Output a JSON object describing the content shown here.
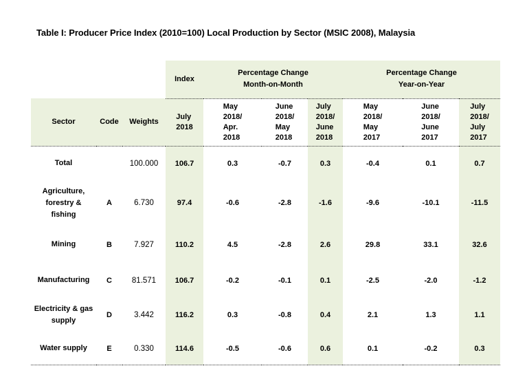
{
  "title": "Table I: Producer Price Index (2010=100) Local Production by Sector (MSIC 2008), Malaysia",
  "colors": {
    "highlight_green": "#EBF1DE",
    "text": "#000000",
    "background": "#ffffff"
  },
  "table": {
    "groups": {
      "index": "Index",
      "mom": "Percentage Change\nMonth-on-Month",
      "yoy": "Percentage Change\nYear-on-Year"
    },
    "columns": {
      "sector": "Sector",
      "code": "Code",
      "weights": "Weights",
      "index_period": "July\n2018",
      "mom1": "May\n2018/\nApr.\n2018",
      "mom2": "June\n2018/\nMay\n2018",
      "mom3": "July\n2018/\nJune\n2018",
      "yoy1": "May\n2018/\nMay\n2017",
      "yoy2": "June\n2018/\nJune\n2017",
      "yoy3": "July\n2018/\nJuly\n2017"
    },
    "rows": [
      {
        "sector": "Total",
        "code": "",
        "weights": "100.000",
        "index": "106.7",
        "mom1": "0.3",
        "mom2": "-0.7",
        "mom3": "0.3",
        "yoy1": "-0.4",
        "yoy2": "0.1",
        "yoy3": "0.7"
      },
      {
        "sector": "Agriculture,\nforestry &\nfishing",
        "code": "A",
        "weights": "6.730",
        "index": "97.4",
        "mom1": "-0.6",
        "mom2": "-2.8",
        "mom3": "-1.6",
        "yoy1": "-9.6",
        "yoy2": "-10.1",
        "yoy3": "-11.5"
      },
      {
        "sector": "Mining",
        "code": "B",
        "weights": "7.927",
        "index": "110.2",
        "mom1": "4.5",
        "mom2": "-2.8",
        "mom3": "2.6",
        "yoy1": "29.8",
        "yoy2": "33.1",
        "yoy3": "32.6"
      },
      {
        "sector": "Manufacturing",
        "code": "C",
        "weights": "81.571",
        "index": "106.7",
        "mom1": "-0.2",
        "mom2": "-0.1",
        "mom3": "0.1",
        "yoy1": "-2.5",
        "yoy2": "-2.0",
        "yoy3": "-1.2"
      },
      {
        "sector": "Electricity & gas\nsupply",
        "code": "D",
        "weights": "3.442",
        "index": "116.2",
        "mom1": "0.3",
        "mom2": "-0.8",
        "mom3": "0.4",
        "yoy1": "2.1",
        "yoy2": "1.3",
        "yoy3": "1.1"
      },
      {
        "sector": "Water supply",
        "code": "E",
        "weights": "0.330",
        "index": "114.6",
        "mom1": "-0.5",
        "mom2": "-0.6",
        "mom3": "0.6",
        "yoy1": "0.1",
        "yoy2": "-0.2",
        "yoy3": "0.3"
      }
    ]
  }
}
